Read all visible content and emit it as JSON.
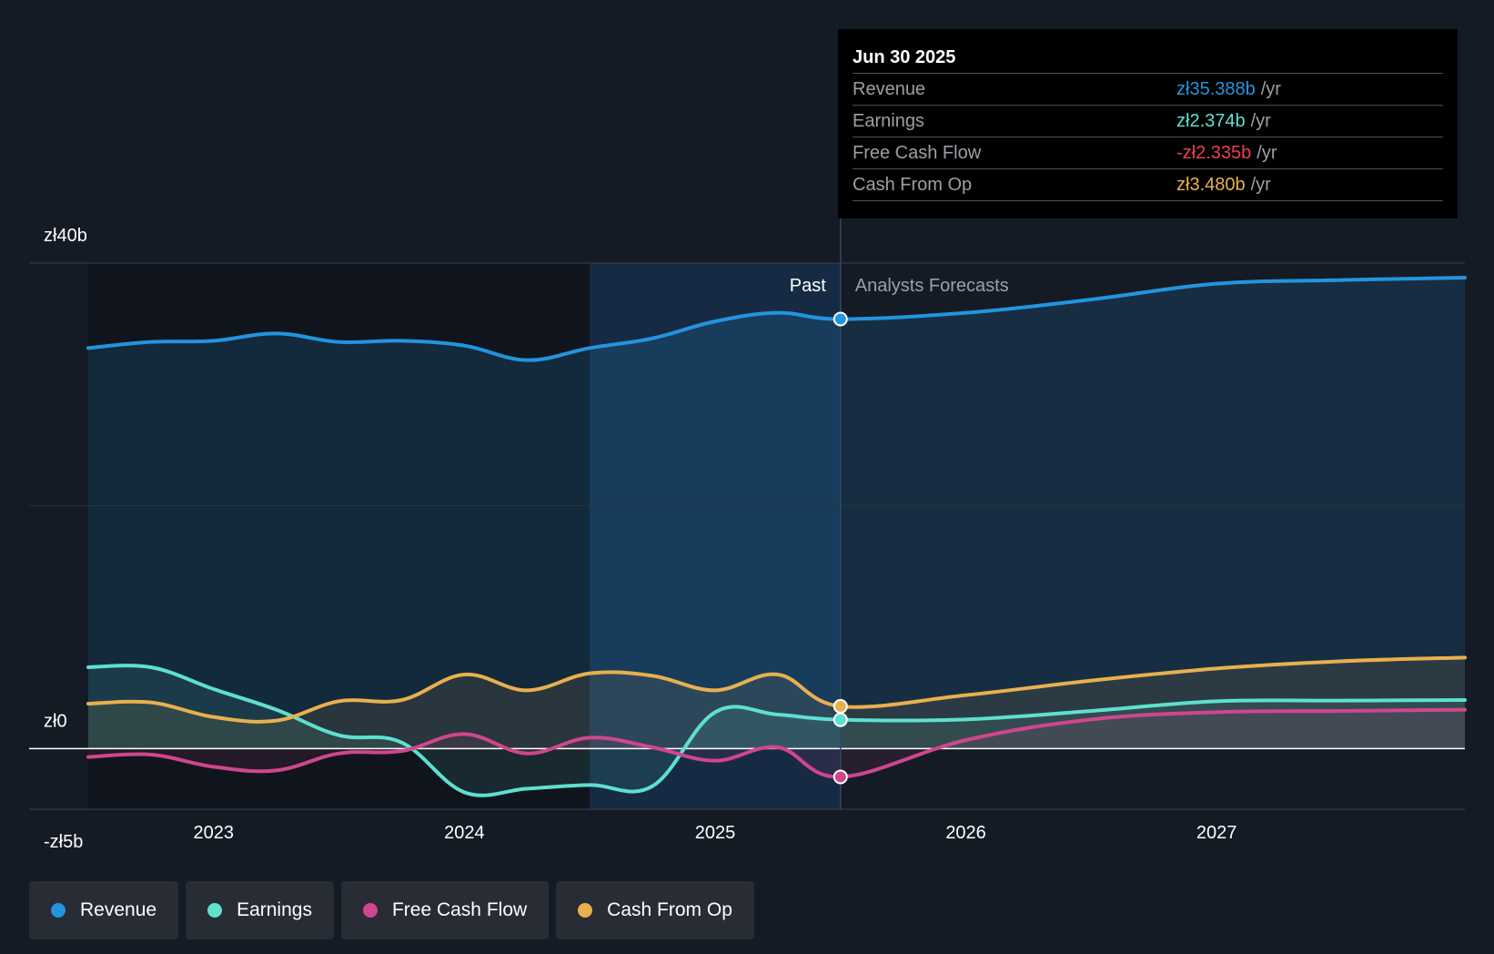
{
  "chart_data": {
    "type": "line",
    "currency": "zł",
    "y_axis": {
      "min": -5,
      "max": 40,
      "unit": "b",
      "tick_labels": [
        "zł40b",
        "zł0",
        "-zł5b"
      ],
      "tick_values": [
        40,
        0,
        -5
      ]
    },
    "x_axis": {
      "tick_labels": [
        "2023",
        "2024",
        "2025",
        "2026",
        "2027"
      ],
      "tick_values": [
        2023,
        2024,
        2025,
        2026,
        2027
      ],
      "range": [
        2022.5,
        2027.99
      ]
    },
    "divider_x": 2025.5,
    "highlight_start_x": 2024.5,
    "regions": {
      "past": "Past",
      "forecast": "Analysts Forecasts"
    },
    "series": [
      {
        "name": "Revenue",
        "color": "#2394df",
        "points": [
          [
            2022.5,
            33.0
          ],
          [
            2022.75,
            33.5
          ],
          [
            2023.0,
            33.6
          ],
          [
            2023.25,
            34.2
          ],
          [
            2023.5,
            33.5
          ],
          [
            2023.75,
            33.6
          ],
          [
            2024.0,
            33.2
          ],
          [
            2024.25,
            32.0
          ],
          [
            2024.5,
            33.0
          ],
          [
            2024.75,
            33.8
          ],
          [
            2025.0,
            35.2
          ],
          [
            2025.25,
            35.9
          ],
          [
            2025.5,
            35.388
          ],
          [
            2026.0,
            35.9
          ],
          [
            2026.5,
            37.0
          ],
          [
            2027.0,
            38.3
          ],
          [
            2027.5,
            38.6
          ],
          [
            2027.99,
            38.8
          ]
        ]
      },
      {
        "name": "Earnings",
        "color": "#5ee0d0",
        "points": [
          [
            2022.5,
            6.7
          ],
          [
            2022.75,
            6.7
          ],
          [
            2023.0,
            4.9
          ],
          [
            2023.25,
            3.2
          ],
          [
            2023.5,
            1.1
          ],
          [
            2023.75,
            0.5
          ],
          [
            2024.0,
            -3.6
          ],
          [
            2024.25,
            -3.3
          ],
          [
            2024.5,
            -3.0
          ],
          [
            2024.75,
            -3.1
          ],
          [
            2025.0,
            3.0
          ],
          [
            2025.25,
            2.8
          ],
          [
            2025.5,
            2.374
          ],
          [
            2026.0,
            2.4
          ],
          [
            2026.5,
            3.1
          ],
          [
            2027.0,
            3.9
          ],
          [
            2027.5,
            3.95
          ],
          [
            2027.99,
            4.0
          ]
        ]
      },
      {
        "name": "Free Cash Flow",
        "color": "#d0468e",
        "points": [
          [
            2022.5,
            -0.7
          ],
          [
            2022.75,
            -0.5
          ],
          [
            2023.0,
            -1.5
          ],
          [
            2023.25,
            -1.8
          ],
          [
            2023.5,
            -0.4
          ],
          [
            2023.75,
            -0.2
          ],
          [
            2024.0,
            1.2
          ],
          [
            2024.25,
            -0.4
          ],
          [
            2024.5,
            0.9
          ],
          [
            2024.75,
            0.1
          ],
          [
            2025.0,
            -1.0
          ],
          [
            2025.25,
            0.1
          ],
          [
            2025.5,
            -2.335
          ],
          [
            2026.0,
            0.7
          ],
          [
            2026.5,
            2.4
          ],
          [
            2027.0,
            3.0
          ],
          [
            2027.5,
            3.1
          ],
          [
            2027.99,
            3.2
          ]
        ]
      },
      {
        "name": "Cash From Op",
        "color": "#e8b04e",
        "points": [
          [
            2022.5,
            3.7
          ],
          [
            2022.75,
            3.8
          ],
          [
            2023.0,
            2.6
          ],
          [
            2023.25,
            2.3
          ],
          [
            2023.5,
            3.9
          ],
          [
            2023.75,
            4.0
          ],
          [
            2024.0,
            6.1
          ],
          [
            2024.25,
            4.8
          ],
          [
            2024.5,
            6.2
          ],
          [
            2024.75,
            6.0
          ],
          [
            2025.0,
            4.8
          ],
          [
            2025.25,
            6.1
          ],
          [
            2025.5,
            3.48
          ],
          [
            2026.0,
            4.4
          ],
          [
            2026.5,
            5.6
          ],
          [
            2027.0,
            6.6
          ],
          [
            2027.5,
            7.2
          ],
          [
            2027.99,
            7.5
          ]
        ]
      }
    ]
  },
  "tooltip": {
    "date": "Jun 30 2025",
    "rows": [
      {
        "name": "Revenue",
        "value": "zł35.388b",
        "unit": "/yr",
        "color": "#2394df"
      },
      {
        "name": "Earnings",
        "value": "zł2.374b",
        "unit": "/yr",
        "color": "#5ee0d0"
      },
      {
        "name": "Free Cash Flow",
        "value": "-zł2.335b",
        "unit": "/yr",
        "color": "#e8434b"
      },
      {
        "name": "Cash From Op",
        "value": "zł3.480b",
        "unit": "/yr",
        "color": "#e8b04e"
      }
    ]
  },
  "legend": [
    {
      "label": "Revenue",
      "color": "#2394df"
    },
    {
      "label": "Earnings",
      "color": "#5ee0d0"
    },
    {
      "label": "Free Cash Flow",
      "color": "#d0468e"
    },
    {
      "label": "Cash From Op",
      "color": "#e8b04e"
    }
  ]
}
